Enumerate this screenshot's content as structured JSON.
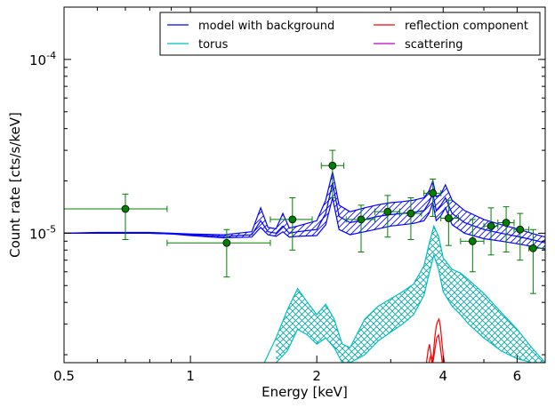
{
  "chart_data": {
    "type": "line",
    "title": "",
    "xlabel": "Energy [keV]",
    "ylabel": "Count rate [cts/s/keV]",
    "xscale": "log",
    "yscale": "log",
    "xlim": [
      0.5,
      7.0
    ],
    "ylim": [
      1.8e-06,
      0.0002
    ],
    "x_ticks": [
      {
        "value": 0.5,
        "label": "0.5"
      },
      {
        "value": 1,
        "label": "1"
      },
      {
        "value": 2,
        "label": "2"
      },
      {
        "value": 4,
        "label": "4"
      },
      {
        "value": 6,
        "label": "6"
      }
    ],
    "y_ticks": [
      {
        "value": 1e-05,
        "base": "10",
        "exp": "-5"
      },
      {
        "value": 0.0001,
        "base": "10",
        "exp": "-4"
      }
    ],
    "legend": {
      "position": "top-right",
      "entries": [
        {
          "label": "model with background",
          "color": "#0000ff"
        },
        {
          "label": "reflection component",
          "color": "#ff0000"
        },
        {
          "label": "torus",
          "color": "#00bfbf"
        },
        {
          "label": "scattering",
          "color": "#bf00bf"
        }
      ]
    },
    "data_points": {
      "color": "#008000",
      "points": [
        {
          "x": 0.7,
          "y": 1.38e-05,
          "xlo": 0.5,
          "xhi": 0.88,
          "ylo": 9.2e-06,
          "yhi": 1.68e-05
        },
        {
          "x": 1.22,
          "y": 8.8e-06,
          "xlo": 0.88,
          "xhi": 1.55,
          "ylo": 5.6e-06,
          "yhi": 1.05e-05
        },
        {
          "x": 1.75,
          "y": 1.2e-05,
          "xlo": 1.55,
          "xhi": 1.95,
          "ylo": 8e-06,
          "yhi": 1.6e-05
        },
        {
          "x": 2.18,
          "y": 2.45e-05,
          "xlo": 2.05,
          "xhi": 2.32,
          "ylo": 1.6e-05,
          "yhi": 3e-05
        },
        {
          "x": 2.55,
          "y": 1.2e-05,
          "xlo": 2.35,
          "xhi": 2.75,
          "ylo": 7.8e-06,
          "yhi": 1.45e-05
        },
        {
          "x": 2.95,
          "y": 1.33e-05,
          "xlo": 2.75,
          "xhi": 3.15,
          "ylo": 9.5e-06,
          "yhi": 1.65e-05
        },
        {
          "x": 3.35,
          "y": 1.3e-05,
          "xlo": 3.15,
          "xhi": 3.55,
          "ylo": 9.2e-06,
          "yhi": 1.6e-05
        },
        {
          "x": 3.78,
          "y": 1.7e-05,
          "xlo": 3.6,
          "xhi": 3.95,
          "ylo": 1.25e-05,
          "yhi": 2.05e-05
        },
        {
          "x": 4.12,
          "y": 1.22e-05,
          "xlo": 3.95,
          "xhi": 4.35,
          "ylo": 8.5e-06,
          "yhi": 1.55e-05
        },
        {
          "x": 4.7,
          "y": 9e-06,
          "xlo": 4.4,
          "xhi": 5.0,
          "ylo": 6e-06,
          "yhi": 1.2e-05
        },
        {
          "x": 5.2,
          "y": 1.1e-05,
          "xlo": 5.0,
          "xhi": 5.4,
          "ylo": 7.5e-06,
          "yhi": 1.4e-05
        },
        {
          "x": 5.65,
          "y": 1.15e-05,
          "xlo": 5.4,
          "xhi": 5.9,
          "ylo": 7.8e-06,
          "yhi": 1.42e-05
        },
        {
          "x": 6.1,
          "y": 1.05e-05,
          "xlo": 5.9,
          "xhi": 6.4,
          "ylo": 7e-06,
          "yhi": 1.3e-05
        },
        {
          "x": 6.55,
          "y": 8.2e-06,
          "xlo": 6.4,
          "xhi": 7.0,
          "ylo": 4.5e-06,
          "yhi": 1.05e-05
        }
      ]
    },
    "series": [
      {
        "label_key": "model with background",
        "color": "#0000ff",
        "lines": [
          {
            "x": [
              0.5,
              0.6,
              0.7,
              0.8,
              0.9,
              1.0,
              1.2,
              1.4,
              1.47,
              1.53,
              1.6,
              1.66,
              1.72,
              1.8,
              2.0,
              2.1,
              2.18,
              2.26,
              2.4,
              2.6,
              2.8,
              3.0,
              3.2,
              3.4,
              3.6,
              3.7,
              3.78,
              3.85,
              3.95,
              4.05,
              4.2,
              4.5,
              5.0,
              5.5,
              6.0,
              6.5,
              7.0
            ],
            "y": [
              1e-05,
              1e-05,
              1e-05,
              1e-05,
              9.9e-06,
              9.8e-06,
              9.6e-06,
              9.8e-06,
              1.18e-05,
              1.02e-05,
              1e-05,
              1.1e-05,
              1e-05,
              1.02e-05,
              1.05e-05,
              1.3e-05,
              1.95e-05,
              1.25e-05,
              1.15e-05,
              1.2e-05,
              1.25e-05,
              1.28e-05,
              1.3e-05,
              1.32e-05,
              1.35e-05,
              1.5e-05,
              1.7e-05,
              1.35e-05,
              1.45e-05,
              1.6e-05,
              1.3e-05,
              1.15e-05,
              1.05e-05,
              1e-05,
              9.6e-06,
              9.2e-06,
              8.8e-06
            ]
          },
          {
            "x": [
              0.5,
              0.6,
              0.7,
              0.8,
              0.9,
              1.0,
              1.2,
              1.4,
              1.47,
              1.53,
              1.6,
              1.66,
              1.72,
              1.8,
              2.0,
              2.1,
              2.18,
              2.26,
              2.4,
              2.6,
              2.8,
              3.0,
              3.2,
              3.4,
              3.6,
              3.7,
              3.78,
              3.85,
              3.95,
              4.05,
              4.2,
              4.5,
              5.0,
              5.5,
              6.0,
              6.5,
              7.0
            ],
            "y": [
              1e-05,
              1.01e-05,
              1.01e-05,
              1.01e-05,
              1e-05,
              9.9e-06,
              9.8e-06,
              1.02e-05,
              1.4e-05,
              1.08e-05,
              1.06e-05,
              1.3e-05,
              1.07e-05,
              1.1e-05,
              1.18e-05,
              1.55e-05,
              2.25e-05,
              1.45e-05,
              1.33e-05,
              1.4e-05,
              1.46e-05,
              1.5e-05,
              1.52e-05,
              1.55e-05,
              1.6e-05,
              1.75e-05,
              2e-05,
              1.62e-05,
              1.68e-05,
              1.9e-05,
              1.55e-05,
              1.35e-05,
              1.2e-05,
              1.12e-05,
              1.06e-05,
              1e-05,
              9.5e-06
            ]
          },
          {
            "x": [
              0.5,
              0.6,
              0.7,
              0.8,
              0.9,
              1.0,
              1.2,
              1.4,
              1.47,
              1.53,
              1.6,
              1.66,
              1.72,
              1.8,
              2.0,
              2.1,
              2.18,
              2.26,
              2.4,
              2.6,
              2.8,
              3.0,
              3.2,
              3.4,
              3.6,
              3.7,
              3.78,
              3.85,
              3.95,
              4.05,
              4.2,
              4.5,
              5.0,
              5.5,
              6.0,
              6.5,
              7.0
            ],
            "y": [
              1e-05,
              1e-05,
              1e-05,
              1e-05,
              9.9e-06,
              9.7e-06,
              9.4e-06,
              9.5e-06,
              1.08e-05,
              9.8e-06,
              9.6e-06,
              1.02e-05,
              9.5e-06,
              9.6e-06,
              9.7e-06,
              1.12e-05,
              1.6e-05,
              1.05e-05,
              9.8e-06,
              1.02e-05,
              1.06e-05,
              1.1e-05,
              1.12e-05,
              1.14e-05,
              1.18e-05,
              1.3e-05,
              1.5e-05,
              1.18e-05,
              1.26e-05,
              1.4e-05,
              1.12e-05,
              1e-05,
              9.3e-06,
              9e-06,
              8.7e-06,
              8.4e-06,
              8.1e-06
            ]
          }
        ]
      },
      {
        "label_key": "torus",
        "color": "#00bfbf",
        "lines": [
          {
            "x": [
              1.5,
              1.6,
              1.7,
              1.8,
              1.9,
              2.0,
              2.1,
              2.2,
              2.3,
              2.4,
              2.6,
              2.8,
              3.0,
              3.2,
              3.4,
              3.6,
              3.7,
              3.8,
              3.9,
              4.0,
              4.2,
              4.4,
              4.6,
              5.0,
              5.5,
              6.0,
              6.5,
              7.0
            ],
            "y": [
              1.8e-06,
              2.5e-06,
              3.6e-06,
              4.8e-06,
              4e-06,
              3.4e-06,
              3.9e-06,
              3.2e-06,
              2.3e-06,
              2.2e-06,
              3.2e-06,
              3.8e-06,
              4.2e-06,
              4.6e-06,
              5.1e-06,
              6.5e-06,
              8.6e-06,
              1.1e-05,
              9.6e-06,
              7.2e-06,
              6.2e-06,
              5.9e-06,
              5.4e-06,
              4.5e-06,
              3.5e-06,
              2.8e-06,
              2.2e-06,
              1.8e-06
            ]
          },
          {
            "x": [
              1.6,
              1.7,
              1.8,
              1.9,
              2.0,
              2.1,
              2.2,
              2.3,
              2.4,
              2.6,
              2.8,
              3.0,
              3.2,
              3.4,
              3.6,
              3.7,
              3.8,
              3.9,
              4.0,
              4.2,
              4.4,
              4.6,
              5.0,
              5.5,
              6.0,
              6.5,
              7.0
            ],
            "y": [
              1.8e-06,
              2.1e-06,
              2.8e-06,
              2.6e-06,
              2.3e-06,
              2.5e-06,
              2.2e-06,
              1.8e-06,
              1.8e-06,
              2e-06,
              2.4e-06,
              2.7e-06,
              3e-06,
              3.4e-06,
              4.4e-06,
              5.8e-06,
              7.5e-06,
              6.2e-06,
              4.6e-06,
              3.8e-06,
              3.4e-06,
              3e-06,
              2.5e-06,
              2.1e-06,
              1.9e-06,
              1.8e-06,
              1.8e-06
            ]
          }
        ]
      },
      {
        "label_key": "reflection component",
        "color": "#ff0000",
        "lines": [
          {
            "x": [
              3.65,
              3.68,
              3.71,
              3.74,
              3.76,
              3.79,
              3.82,
              3.85,
              3.88,
              3.91,
              3.94,
              3.97,
              4.0,
              4.03
            ],
            "y": [
              1.8e-06,
              2.1e-06,
              2.3e-06,
              2e-06,
              1.8e-06,
              2e-06,
              2.5e-06,
              2.9e-06,
              3.1e-06,
              3.2e-06,
              2.9e-06,
              2.4e-06,
              2e-06,
              1.8e-06
            ]
          },
          {
            "x": [
              3.7,
              3.74,
              3.78,
              3.82,
              3.86,
              3.9,
              3.94,
              3.98
            ],
            "y": [
              1.8e-06,
              2e-06,
              1.8e-06,
              2.1e-06,
              2.5e-06,
              2.6e-06,
              2.2e-06,
              1.8e-06
            ]
          }
        ]
      }
    ]
  }
}
